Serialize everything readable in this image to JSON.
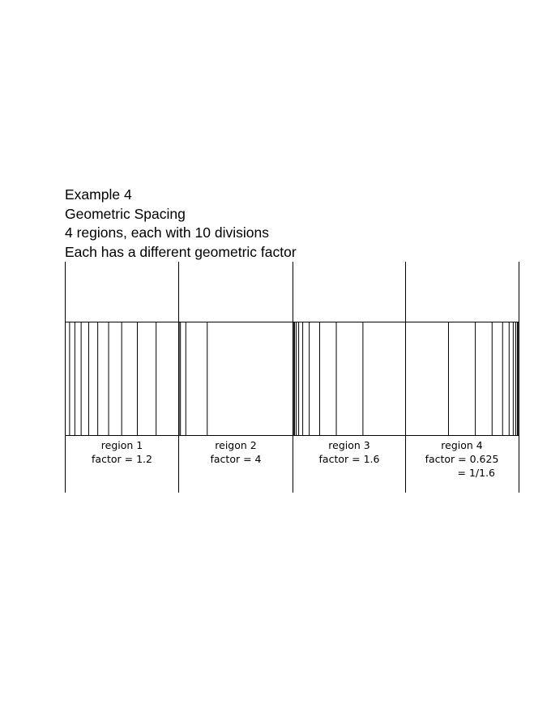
{
  "title_lines": [
    "Example 4",
    "Geometric Spacing",
    "4 regions, each with 10 divisions",
    "Each has a different geometric factor"
  ],
  "divisions_per_region": 10,
  "regions": [
    {
      "label": "region 1",
      "factor_text": "factor = 1.2",
      "factor_note": "",
      "factor": 1.2
    },
    {
      "label": "reigon 2",
      "factor_text": "factor = 4",
      "factor_note": "",
      "factor": 4
    },
    {
      "label": "region 3",
      "factor_text": "factor = 1.6",
      "factor_note": "",
      "factor": 1.6
    },
    {
      "label": "region 4",
      "factor_text": "factor = 0.625",
      "factor_note": "= 1/1.6",
      "factor": 0.625
    }
  ]
}
